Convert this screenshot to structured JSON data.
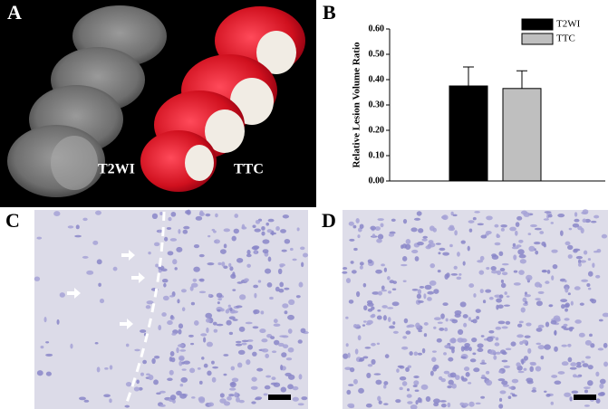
{
  "panels": {
    "a": {
      "label": "A",
      "captions": [
        "T2WI",
        "TTC"
      ]
    },
    "c": {
      "label": "C"
    },
    "d": {
      "label": "D"
    }
  },
  "chart_data": {
    "type": "bar",
    "panel_label": "B",
    "ylabel": "Relative Lesion Volume Ratio",
    "categories": [
      null
    ],
    "series": [
      {
        "name": "T2WI",
        "color": "#000000",
        "values": [
          0.375
        ],
        "errors": [
          0.075
        ]
      },
      {
        "name": "TTC",
        "color": "#bfbfbf",
        "values": [
          0.365
        ],
        "errors": [
          0.07
        ]
      }
    ],
    "ylim": [
      0,
      0.6
    ],
    "yticks": [
      {
        "value": 0,
        "label": "0.00"
      },
      {
        "value": 0.1,
        "label": "0.10"
      },
      {
        "value": 0.2,
        "label": "0.20"
      },
      {
        "value": 0.3,
        "label": "0.30"
      },
      {
        "value": 0.4,
        "label": "0.40"
      },
      {
        "value": 0.5,
        "label": "0.50"
      },
      {
        "value": 0.6,
        "label": "0.60"
      }
    ],
    "legend": "upper right"
  }
}
